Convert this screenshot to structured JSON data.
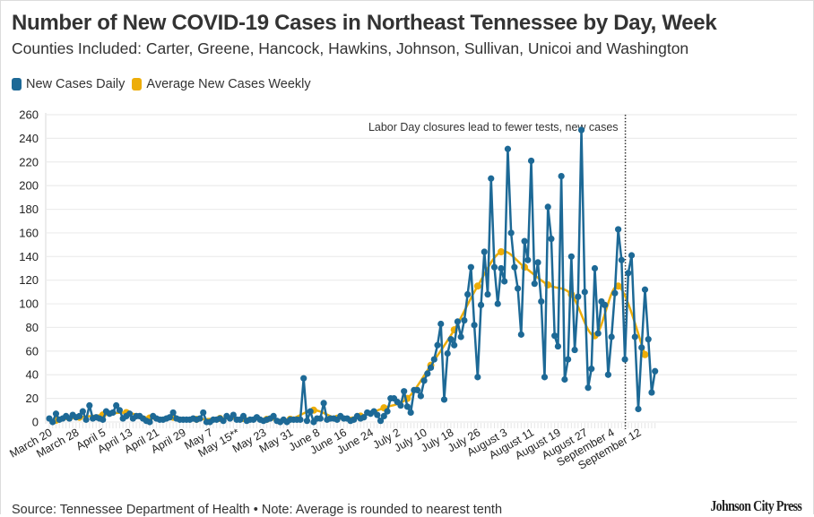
{
  "header": {
    "title": "Number of New COVID-19 Cases in Northeast Tennessee by Day, Week",
    "subtitle": "Counties Included: Carter, Greene, Hancock, Hawkins, Johnson, Sullivan, Unicoi and Washington"
  },
  "legend": [
    {
      "label": "New Cases Daily",
      "color": "#1d6996"
    },
    {
      "label": "Average New Cases Weekly",
      "color": "#edad08"
    }
  ],
  "footer": {
    "source": "Source: Tennessee Department of Health • Note: Average is rounded to nearest tenth",
    "brand": "Johnson City Press"
  },
  "chart_data": {
    "type": "line",
    "title": "Number of New COVID-19 Cases in Northeast Tennessee by Day, Week",
    "xlabel": "",
    "ylabel": "",
    "ylim": [
      0,
      260
    ],
    "yticks": [
      0,
      20,
      40,
      60,
      80,
      100,
      120,
      140,
      160,
      180,
      200,
      220,
      240,
      260
    ],
    "grid": true,
    "legend_position": "top-left",
    "x_start_date": "March 20",
    "x_day_range": [
      0,
      178
    ],
    "xtick_labels": [
      "March 20",
      "March 28",
      "April 5",
      "April 13",
      "April 21",
      "April 29",
      "May 7",
      "May 15**",
      "May 23",
      "May 31",
      "June 8",
      "June 16",
      "June 24",
      "July 2",
      "July 10",
      "July 18",
      "July 26",
      "August 3",
      "August 11",
      "August 19",
      "August 27",
      "September 4",
      "September 12"
    ],
    "xtick_days": [
      0,
      8,
      16,
      24,
      32,
      40,
      48,
      56,
      64,
      72,
      80,
      88,
      96,
      104,
      112,
      120,
      128,
      136,
      144,
      152,
      160,
      168,
      176
    ],
    "annotation": {
      "text": "Labor Day closures lead to fewer tests, new cases",
      "day": 172
    },
    "series": [
      {
        "name": "New Cases Daily",
        "color": "#1d6996",
        "values": [
          3,
          0,
          7,
          2,
          3,
          5,
          3,
          6,
          4,
          5,
          9,
          2,
          14,
          3,
          4,
          3,
          2,
          9,
          7,
          8,
          14,
          10,
          3,
          5,
          7,
          3,
          5,
          5,
          3,
          1,
          0,
          5,
          3,
          2,
          2,
          3,
          4,
          8,
          3,
          2,
          2,
          2,
          2,
          3,
          2,
          3,
          8,
          0,
          0,
          2,
          2,
          3,
          1,
          5,
          3,
          6,
          2,
          2,
          5,
          1,
          2,
          2,
          4,
          2,
          1,
          2,
          3,
          5,
          1,
          0,
          2,
          0,
          2,
          2,
          2,
          2,
          37,
          1,
          9,
          0,
          3,
          3,
          16,
          2,
          3,
          3,
          2,
          5,
          3,
          3,
          1,
          2,
          5,
          3,
          4,
          8,
          7,
          9,
          6,
          1,
          5,
          9,
          20,
          20,
          17,
          14,
          26,
          13,
          8,
          27,
          27,
          22,
          35,
          41,
          46,
          53,
          65,
          83,
          19,
          58,
          70,
          65,
          85,
          72,
          86,
          108,
          131,
          82,
          38,
          99,
          144,
          108,
          206,
          131,
          100,
          130,
          119,
          231,
          160,
          131,
          113,
          74,
          153,
          137,
          221,
          117,
          135,
          102,
          38,
          182,
          155,
          73,
          64,
          208,
          36,
          53,
          140,
          61,
          106,
          247,
          110,
          29,
          45,
          130,
          75,
          102,
          99,
          40,
          72,
          109,
          163,
          137,
          53,
          126,
          141,
          72,
          11,
          63,
          112,
          70,
          25,
          43
        ]
      },
      {
        "name": "Average New Cases Weekly",
        "color": "#edad08",
        "days": [
          2,
          9,
          16,
          23,
          30,
          37,
          44,
          51,
          58,
          65,
          72,
          79,
          86,
          93,
          100,
          107,
          114,
          121,
          128,
          135,
          142,
          149,
          156,
          163,
          170,
          178
        ],
        "values": [
          1.5,
          4,
          6,
          8,
          3.4,
          4,
          2.3,
          3,
          3,
          2.3,
          2.4,
          10,
          3.2,
          5,
          12,
          20,
          48,
          78,
          115,
          144,
          131,
          116,
          108,
          73,
          115,
          57
        ]
      }
    ]
  }
}
